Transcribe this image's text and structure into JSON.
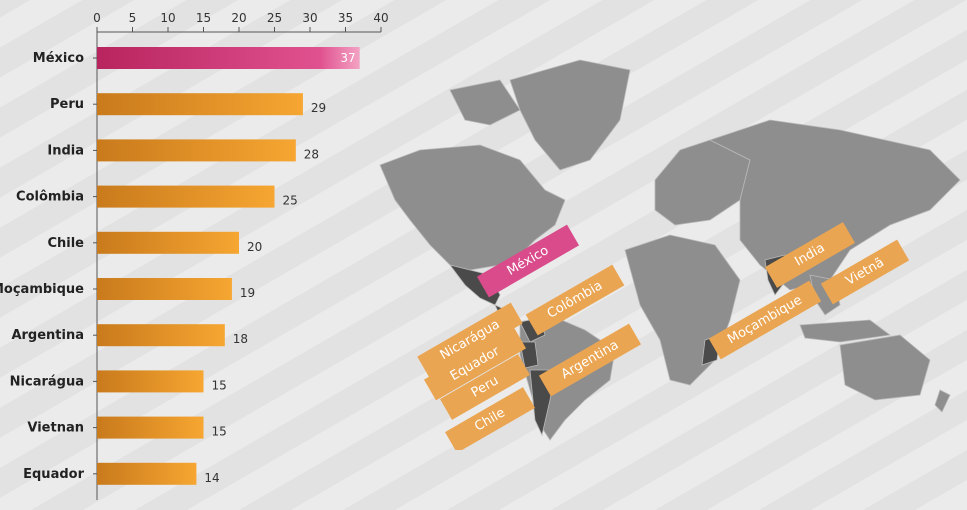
{
  "chart_data": {
    "type": "bar",
    "orientation": "horizontal",
    "categories": [
      "México",
      "Peru",
      "India",
      "Colômbia",
      "Chile",
      "Moçambique",
      "Argentina",
      "Nicarágua",
      "Vietnan",
      "Equador"
    ],
    "values": [
      37,
      29,
      28,
      25,
      20,
      19,
      18,
      15,
      15,
      14
    ],
    "xlim": [
      0,
      40
    ],
    "xticks": [
      0,
      5,
      10,
      15,
      20,
      25,
      30,
      35,
      40
    ],
    "axis_position": "top",
    "grid": false,
    "colors": {
      "highlight": "#d94b8b",
      "default": "#f0a030",
      "dark_default": "#c97a1c",
      "dark_highlight": "#b8245e"
    }
  },
  "map": {
    "labels": [
      {
        "id": "mexico",
        "text": "México",
        "style": "pink"
      },
      {
        "id": "colombia",
        "text": "Colômbia",
        "style": "orange"
      },
      {
        "id": "nicaragua",
        "text": "Nicarágua",
        "style": "orange"
      },
      {
        "id": "equador",
        "text": "Equador",
        "style": "orange"
      },
      {
        "id": "peru",
        "text": "Peru",
        "style": "orange"
      },
      {
        "id": "chile",
        "text": "Chile",
        "style": "orange"
      },
      {
        "id": "argentina",
        "text": "Argentina",
        "style": "orange"
      },
      {
        "id": "india",
        "text": "India",
        "style": "orange"
      },
      {
        "id": "mocambique",
        "text": "Moçambique",
        "style": "orange"
      },
      {
        "id": "vietna",
        "text": "Vietnã",
        "style": "orange"
      }
    ]
  }
}
